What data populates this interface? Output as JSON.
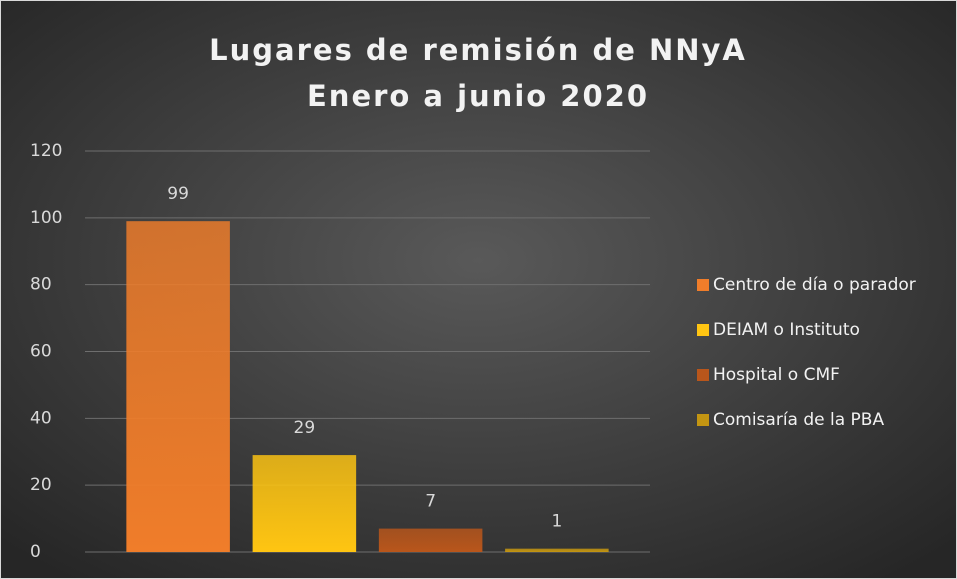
{
  "chart_data": {
    "type": "bar",
    "title": "Lugares de remisión de NNyA",
    "subtitle": "Enero a junio 2020",
    "categories": [
      null
    ],
    "series": [
      {
        "name": "Centro de día o parador",
        "color": "#f07d2a",
        "values": [
          99
        ]
      },
      {
        "name": "DEIAM o Instituto",
        "color": "#ffc512",
        "values": [
          29
        ]
      },
      {
        "name": "Hospital o CMF",
        "color": "#b9561b",
        "values": [
          7
        ]
      },
      {
        "name": "Comisaría de la PBA",
        "color": "#c39512",
        "values": [
          1
        ]
      }
    ],
    "ylim": [
      0,
      120
    ],
    "yticks": [
      0,
      20,
      40,
      60,
      80,
      100,
      120
    ],
    "grid": true,
    "legend": "right"
  }
}
